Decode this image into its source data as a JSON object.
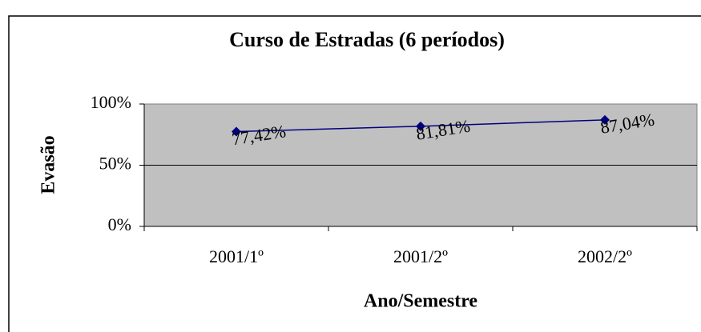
{
  "chart_data": {
    "type": "line",
    "title": "Curso de Estradas (6 períodos)",
    "x_label": "Ano/Semestre",
    "y_label": "Evasão",
    "categories": [
      "2001/1º",
      "2001/2º",
      "2002/2º"
    ],
    "series": [
      {
        "name": "Evasão",
        "color": "#000080",
        "values": [
          77.42,
          81.81,
          87.04
        ],
        "value_labels": [
          "77,42%",
          "81,81%",
          "87,04%"
        ]
      }
    ],
    "ylim": [
      0,
      100
    ],
    "yticks": [
      {
        "value": 0,
        "label": "0%"
      },
      {
        "value": 50,
        "label": "50%"
      },
      {
        "value": 100,
        "label": "100%"
      }
    ],
    "grid": true,
    "plot_background": "#c0c0c0"
  }
}
